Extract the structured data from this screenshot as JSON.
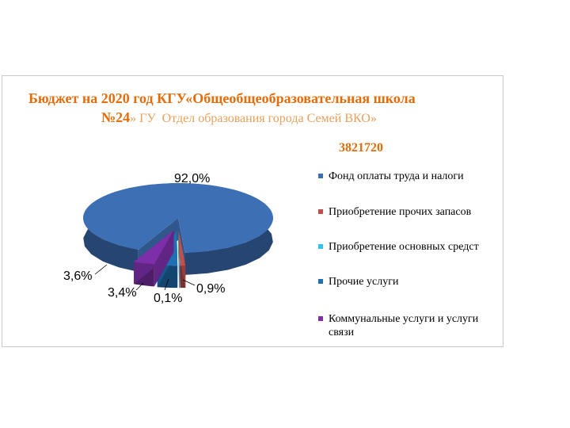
{
  "title": {
    "line1": "Бюджет на 2020 год КГУ«Общеобщеобразовательная школа",
    "line2_num": "№24",
    "line2_sub": "» ГУ  Отдел образования города Семей ВКО»"
  },
  "total": "3821720",
  "chart_data": {
    "type": "pie",
    "title": "Бюджет на 2020 год КГУ«Общеобщеобразовательная школа №24» ГУ Отдел образования города Семей ВКО»",
    "subtitle": "3821720",
    "legend_position": "right",
    "categories": [
      "Фонд оплаты труда и налоги",
      "Приобретение прочих запасов",
      "Приобретение основных средст",
      "Прочие услуги",
      "Коммунальные услуги и услуги связи"
    ],
    "values": [
      92.0,
      0.9,
      0.1,
      3.4,
      3.6
    ],
    "labels": [
      "92,0%",
      "0,9%",
      "0,1%",
      "3,4%",
      "3,6%"
    ],
    "colors": [
      "#3d6fb4",
      "#c0504d",
      "#33bff0",
      "#1f6fb3",
      "#7c2fa8"
    ]
  }
}
